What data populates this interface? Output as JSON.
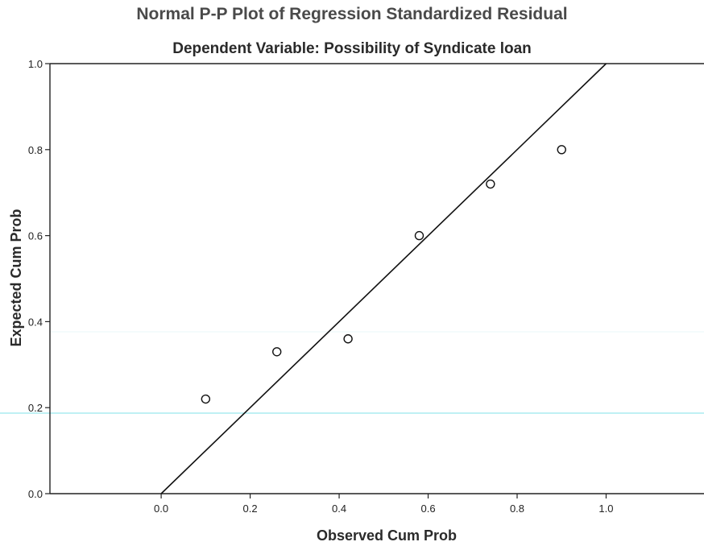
{
  "chart_data": {
    "type": "scatter",
    "title": "Normal P-P Plot of Regression Standardized Residual",
    "subtitle": "Dependent Variable: Possibility of Syndicate loan",
    "xlabel": "Observed Cum Prob",
    "ylabel": "Expected Cum Prob",
    "xlim": [
      -0.25,
      1.22
    ],
    "ylim": [
      0.0,
      1.0
    ],
    "x_ticks": [
      0.0,
      0.2,
      0.4,
      0.6,
      0.8,
      1.0
    ],
    "x_tick_labels": [
      "0.0",
      "0.2",
      "0.4",
      "0.6",
      "0.8",
      "1.0"
    ],
    "y_ticks": [
      0.0,
      0.2,
      0.4,
      0.6,
      0.8,
      1.0
    ],
    "y_tick_labels": [
      "0.0",
      "0.2",
      "0.4",
      "0.6",
      "0.8",
      "1.0"
    ],
    "reference_line": {
      "from": [
        0.0,
        0.0
      ],
      "to": [
        1.0,
        1.0
      ]
    },
    "points": [
      {
        "x": 0.1,
        "y": 0.22
      },
      {
        "x": 0.26,
        "y": 0.33
      },
      {
        "x": 0.42,
        "y": 0.36
      },
      {
        "x": 0.58,
        "y": 0.6
      },
      {
        "x": 0.74,
        "y": 0.72
      },
      {
        "x": 0.9,
        "y": 0.8
      }
    ],
    "grid": false,
    "colors": {
      "axis": "#222222",
      "line": "#111111",
      "marker_stroke": "#111111",
      "marker_fill": "#ffffff",
      "scan_line": "#7fe0e8"
    }
  }
}
